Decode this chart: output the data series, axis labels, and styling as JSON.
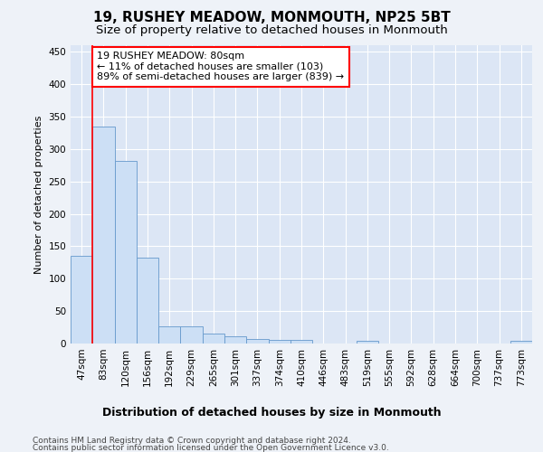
{
  "title": "19, RUSHEY MEADOW, MONMOUTH, NP25 5BT",
  "subtitle": "Size of property relative to detached houses in Monmouth",
  "xlabel": "Distribution of detached houses by size in Monmouth",
  "ylabel": "Number of detached properties",
  "bar_labels": [
    "47sqm",
    "83sqm",
    "120sqm",
    "156sqm",
    "192sqm",
    "229sqm",
    "265sqm",
    "301sqm",
    "337sqm",
    "374sqm",
    "410sqm",
    "446sqm",
    "483sqm",
    "519sqm",
    "555sqm",
    "592sqm",
    "628sqm",
    "664sqm",
    "700sqm",
    "737sqm",
    "773sqm"
  ],
  "bar_values": [
    135,
    335,
    281,
    133,
    26,
    26,
    15,
    11,
    7,
    6,
    5,
    0,
    0,
    4,
    0,
    0,
    0,
    0,
    0,
    0,
    4
  ],
  "bar_color": "#ccdff5",
  "bar_edge_color": "#6699cc",
  "annotation_text": "19 RUSHEY MEADOW: 80sqm\n← 11% of detached houses are smaller (103)\n89% of semi-detached houses are larger (839) →",
  "annotation_box_color": "white",
  "annotation_box_edge_color": "red",
  "vline_color": "red",
  "vline_x_index": 0.5,
  "ylim": [
    0,
    460
  ],
  "yticks": [
    0,
    50,
    100,
    150,
    200,
    250,
    300,
    350,
    400,
    450
  ],
  "footer_line1": "Contains HM Land Registry data © Crown copyright and database right 2024.",
  "footer_line2": "Contains public sector information licensed under the Open Government Licence v3.0.",
  "bg_color": "#eef2f8",
  "plot_bg_color": "#dce6f5",
  "grid_color": "white",
  "title_fontsize": 11,
  "subtitle_fontsize": 9.5,
  "xlabel_fontsize": 9,
  "ylabel_fontsize": 8,
  "tick_fontsize": 7.5,
  "annotation_fontsize": 8,
  "footer_fontsize": 6.5
}
